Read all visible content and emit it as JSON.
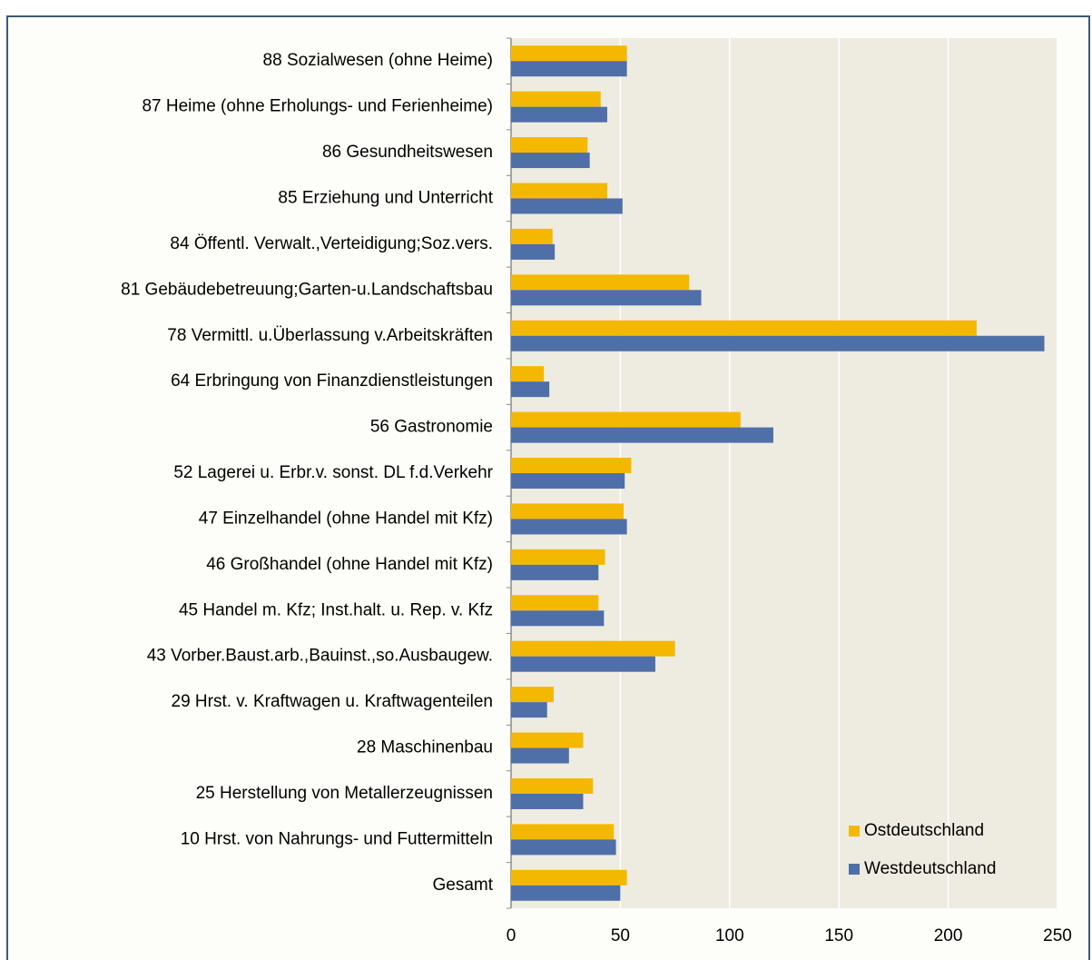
{
  "chart_data": {
    "type": "hbar",
    "categories": [
      "88 Sozialwesen (ohne Heime)",
      "87 Heime (ohne Erholungs- und Ferienheime)",
      "86 Gesundheitswesen",
      "85 Erziehung und Unterricht",
      "84 Öffentl. Verwalt.,Verteidigung;Soz.vers.",
      "81 Gebäudebetreuung;Garten-u.Landschaftsbau",
      "78 Vermittl. u.Überlassung v.Arbeitskräften",
      "64 Erbringung von Finanzdienstleistungen",
      "56 Gastronomie",
      "52 Lagerei u. Erbr.v. sonst. DL f.d.Verkehr",
      "47 Einzelhandel (ohne Handel mit Kfz)",
      "46 Großhandel (ohne Handel mit Kfz)",
      "45 Handel m. Kfz; Inst.halt. u. Rep. v. Kfz",
      "43 Vorber.Baust.arb.,Bauinst.,so.Ausbaugew.",
      "29 Hrst. v. Kraftwagen u. Kraftwagenteilen",
      "28 Maschinenbau",
      "25 Herstellung von Metallerzeugnissen",
      "10 Hrst. von Nahrungs- und Futtermitteln",
      "Gesamt"
    ],
    "series": [
      {
        "name": "Ostdeutschland",
        "color": "#f5b800",
        "values": [
          53,
          41,
          35,
          44,
          19,
          81.5,
          213,
          15,
          105,
          55,
          51.5,
          43,
          40,
          75,
          19.5,
          33,
          37.5,
          47,
          53
        ]
      },
      {
        "name": "Westdeutschland",
        "color": "#4f6fa8",
        "values": [
          53,
          44,
          36,
          51,
          20,
          87,
          244,
          17.5,
          120,
          52,
          53,
          40,
          42.5,
          66,
          16.5,
          26.5,
          33,
          48,
          50
        ]
      }
    ],
    "xlim": [
      0,
      250
    ],
    "xticks": [
      0,
      50,
      100,
      150,
      200,
      250
    ],
    "grid": true,
    "legend": "lower right"
  }
}
